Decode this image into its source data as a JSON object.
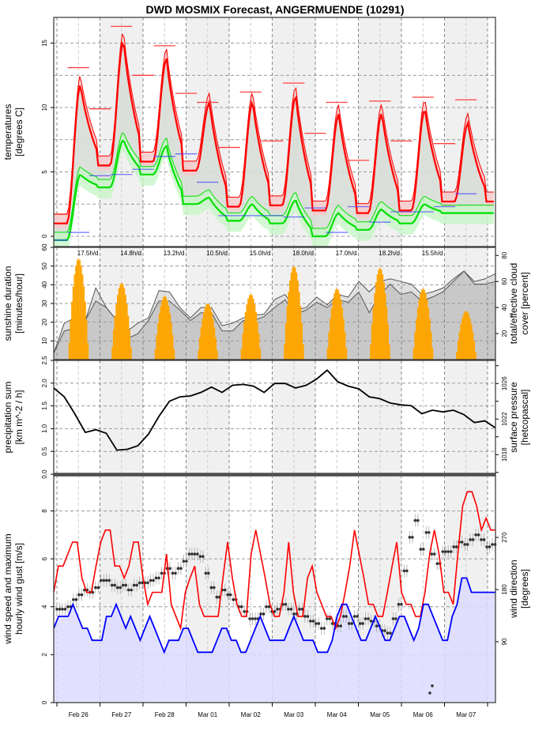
{
  "chart_data": {
    "type": "line",
    "title": "DWD MOSMIX Forecast, ANGERMUENDE (10291)",
    "x_ticks": [
      "Feb 26",
      "Feb 27",
      "Feb 28",
      "Mar 01",
      "Mar 02",
      "Mar 03",
      "Mar 04",
      "Mar 05",
      "Mar 06",
      "Mar 07"
    ],
    "days": 10.3,
    "colors": {
      "temp": "#ff0000",
      "temp_band": "#f4c9c9",
      "dew": "#00e000",
      "dew_band": "#c8f5c8",
      "tmax_bar": "#ff4040",
      "tmin_bar": "#4040ff",
      "sun": "#ffa500",
      "cloud_total": "#e0e0e0",
      "cloud_eff": "#c8c8c8",
      "pressure": "#000000",
      "gust": "#ff0000",
      "wind": "#0000ff",
      "wind_fill": "#dcdcff",
      "dir": "#333333",
      "night_shade": "#f0f0f0"
    },
    "panels": [
      {
        "id": "temperature",
        "ylabel": [
          "temperatures",
          "[degrees C]"
        ],
        "ylim": [
          -0.8,
          17
        ],
        "yticks": [
          0,
          5,
          10,
          15
        ],
        "series": [
          {
            "name": "temperature",
            "daily_max": [
              11.8,
              15.2,
              13.8,
              10.4,
              10.5,
              10.9,
              9.5,
              9.6,
              9.9,
              8.8
            ],
            "daily_min": [
              1.0,
              5.5,
              5.8,
              5.1,
              2.3,
              2.4,
              2.0,
              1.8,
              2.0,
              2.7
            ],
            "end": 3.8
          },
          {
            "name": "dewpoint",
            "daily_max": [
              4.8,
              7.5,
              7.0,
              3.0,
              2.5,
              2.8,
              1.8,
              2.1,
              2.5,
              1.8
            ],
            "daily_min": [
              -0.3,
              3.8,
              4.8,
              2.5,
              1.2,
              1.0,
              0.0,
              0.5,
              1.0,
              1.8
            ]
          }
        ],
        "tmax_bars": [
          13.1,
          16.3,
          14.8,
          10.4,
          11.2,
          11.9,
          10.4,
          10.5,
          10.8,
          10.6
        ],
        "tmax_mid": [
          9.9,
          12.5,
          11.1,
          6.9,
          7.4,
          8.0,
          5.9,
          7.4,
          7.2
        ],
        "tmin_bars": [
          0.3,
          4.8,
          6.2,
          4.2,
          1.6,
          1.5,
          0.3,
          1.1,
          1.9,
          3.3
        ],
        "tmin_mid": [
          4.7,
          5.2,
          6.4,
          1.6,
          1.6,
          2.2,
          2.3,
          1.9,
          2.3
        ],
        "start_bar": 1.7
      },
      {
        "id": "sunshine",
        "ylabel": [
          "sunshine duration",
          "[minutes/hour]"
        ],
        "ylabel_right": [
          "total/effective cloud",
          "cover [percent]"
        ],
        "ylim": [
          0,
          60
        ],
        "yticks": [
          10,
          20,
          30,
          40,
          50,
          60
        ],
        "yticks_right": [
          20,
          40,
          60,
          80
        ],
        "daily_sunshine_labels": [
          "17.5h/d",
          "14.8h/d",
          "13.2h/d",
          "10.5h/d",
          "15.0h/d",
          "18.0h/d",
          "17.0h/d",
          "18.2h/d",
          "15.5h/d"
        ],
        "sun_peaks": [
          54,
          41,
          34,
          30,
          35,
          50,
          38,
          49,
          38,
          26
        ],
        "cloud_total": [
          5,
          28,
          32,
          30,
          55,
          40,
          30,
          22,
          28,
          32,
          53,
          52,
          40,
          32,
          40,
          40,
          26,
          28,
          32,
          34,
          35,
          46,
          50,
          38,
          40,
          48,
          42,
          50,
          48,
          60,
          52,
          60,
          62,
          60,
          58,
          50,
          52,
          55,
          62,
          68,
          60,
          62,
          66
        ],
        "cloud_effective": [
          5,
          22,
          24,
          30,
          45,
          40,
          30,
          16,
          20,
          30,
          45,
          45,
          38,
          30,
          36,
          36,
          22,
          22,
          30,
          30,
          33,
          40,
          46,
          35,
          38,
          44,
          40,
          46,
          44,
          52,
          36,
          50,
          58,
          50,
          52,
          45,
          48,
          52,
          60,
          68,
          58,
          58,
          60
        ]
      },
      {
        "id": "precipitation",
        "ylabel": [
          "precipitation sum",
          "[km m^-2 / h]"
        ],
        "ylabel_right": [
          "surface pressure",
          "[hetcopascal]"
        ],
        "ylim": [
          0,
          2.5
        ],
        "yticks": [
          0.0,
          0.5,
          1.0,
          1.5,
          2.0,
          2.5
        ],
        "yticks_right": [
          1018,
          1022,
          1026
        ],
        "pressure_hPa": [
          1025.5,
          1024.5,
          1022.6,
          1020.5,
          1020.8,
          1020.4,
          1018.5,
          1018.6,
          1019.0,
          1020.3,
          1022.3,
          1024.0,
          1024.5,
          1024.6,
          1025.0,
          1025.6,
          1025.0,
          1025.8,
          1025.9,
          1025.7,
          1025.0,
          1026.0,
          1026.0,
          1025.5,
          1025.8,
          1026.5,
          1027.5,
          1026.2,
          1025.7,
          1025.4,
          1024.5,
          1024.3,
          1023.8,
          1023.6,
          1023.5,
          1022.6,
          1023.0,
          1022.8,
          1023.0,
          1022.5,
          1021.6,
          1021.8,
          1021.0
        ]
      },
      {
        "id": "wind",
        "ylabel": [
          "wind speed and maximum",
          "hourly wind gust [m/s]"
        ],
        "ylabel_right": [
          "wind direction",
          "[degrees]"
        ],
        "ylim": [
          0,
          9.5
        ],
        "yticks": [
          0,
          2,
          4,
          6,
          8
        ],
        "yticks_right": [
          90,
          180,
          270
        ],
        "gust": [
          4.6,
          5.7,
          5.7,
          6.2,
          6.7,
          6.7,
          5.2,
          4.6,
          4.6,
          5.7,
          6.7,
          7.2,
          7.2,
          5.7,
          5.7,
          5.2,
          5.7,
          6.7,
          6.7,
          5.2,
          4.1,
          4.6,
          4.6,
          4.6,
          6.2,
          4.1,
          3.6,
          3.1,
          4.6,
          5.2,
          5.7,
          4.1,
          3.6,
          3.6,
          3.6,
          3.6,
          5.2,
          6.7,
          5.2,
          4.1,
          3.6,
          3.6,
          6.2,
          7.2,
          6.2,
          5.2,
          4.1,
          3.6,
          3.6,
          4.6,
          6.7,
          4.6,
          3.6,
          3.6,
          5.2,
          5.7,
          4.6,
          4.1,
          3.6,
          3.6,
          3.1,
          3.6,
          4.6,
          5.7,
          7.2,
          6.2,
          5.2,
          4.1,
          4.1,
          3.6,
          3.6,
          4.6,
          5.7,
          6.7,
          4.6,
          4.1,
          4.1,
          3.6,
          3.6,
          4.6,
          6.2,
          7.2,
          6.2,
          4.6,
          4.6,
          4.1,
          6.2,
          8.2,
          8.8,
          8.8,
          8.2,
          7.2,
          7.7,
          7.2,
          7.2
        ],
        "wind": [
          3.1,
          3.6,
          3.6,
          3.6,
          4.1,
          3.6,
          3.1,
          3.1,
          2.6,
          2.6,
          2.6,
          3.6,
          3.6,
          4.1,
          3.6,
          3.1,
          3.6,
          3.1,
          2.6,
          3.1,
          3.6,
          3.1,
          2.6,
          2.1,
          2.6,
          2.6,
          2.6,
          3.1,
          3.1,
          2.6,
          2.1,
          2.1,
          2.1,
          2.1,
          2.6,
          3.1,
          3.1,
          2.6,
          2.6,
          2.1,
          2.1,
          2.6,
          3.1,
          3.6,
          3.1,
          2.6,
          2.6,
          2.6,
          2.6,
          3.1,
          3.6,
          3.1,
          2.6,
          2.6,
          2.6,
          2.1,
          2.1,
          2.1,
          2.6,
          3.6,
          4.1,
          4.1,
          3.6,
          3.1,
          2.6,
          2.6,
          3.1,
          3.6,
          3.1,
          2.6,
          2.6,
          3.1,
          3.6,
          3.6,
          3.1,
          2.6,
          3.1,
          4.1,
          4.1,
          3.6,
          3.1,
          2.6,
          2.6,
          3.6,
          4.1,
          5.2,
          5.2,
          4.6,
          4.6,
          4.6,
          4.6,
          4.6,
          4.6
        ],
        "direction_ms_scale": [
          3.9,
          3.9,
          4.0,
          4.3,
          4.5,
          4.7,
          4.6,
          4.8,
          5.1,
          5.1,
          4.9,
          4.8,
          4.9,
          4.7,
          4.9,
          5.0,
          5.0,
          5.1,
          5.2,
          5.4,
          5.6,
          5.4,
          5.6,
          5.9,
          6.2,
          6.2,
          6.1,
          5.4,
          4.8,
          4.4,
          4.7,
          4.5,
          4.3,
          4.0,
          3.8,
          3.5,
          3.5,
          3.7,
          4.0,
          3.8,
          3.9,
          4.1,
          3.9,
          3.7,
          3.9,
          3.6,
          3.4,
          3.3,
          3.1,
          3.5,
          3.3,
          3.2,
          3.6,
          3.3,
          3.6,
          3.3,
          3.5,
          3.4,
          3.2,
          3.0,
          2.9,
          3.5,
          4.1,
          5.5,
          6.9,
          7.6,
          6.4,
          7.1,
          6.2,
          5.8,
          6.3,
          6.3,
          6.5,
          6.7,
          6.6,
          6.8,
          7.0,
          6.8,
          6.5,
          6.6
        ],
        "outlier_points": [
          0.4,
          0.7
        ]
      }
    ]
  }
}
